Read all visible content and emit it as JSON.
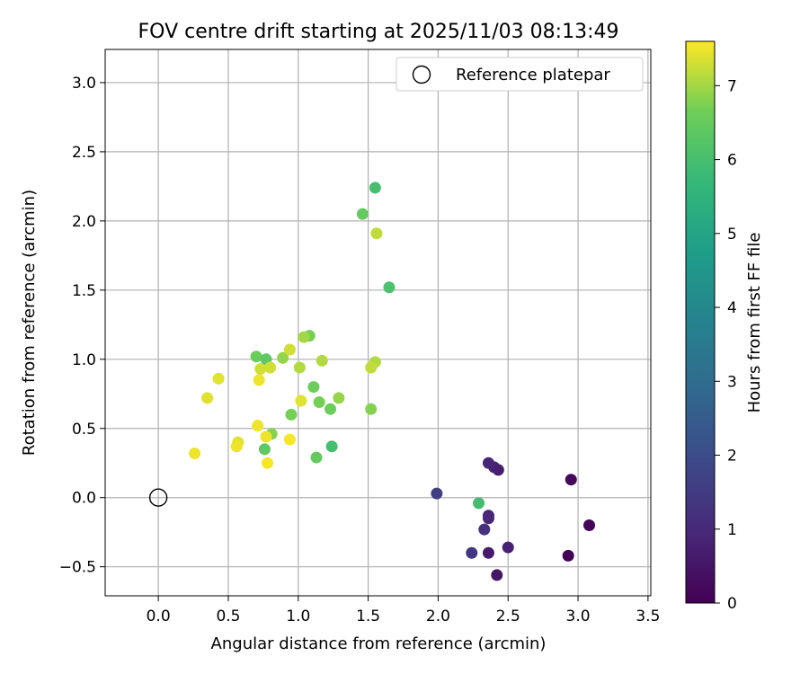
{
  "chart_data": {
    "type": "scatter",
    "title": "FOV centre drift starting at 2025/11/03 08:13:49",
    "xlabel": "Angular distance from reference (arcmin)",
    "ylabel": "Rotation from reference (arcmin)",
    "xlim": [
      -0.38,
      3.52
    ],
    "ylim": [
      -0.71,
      3.24
    ],
    "xticks": [
      0.0,
      0.5,
      1.0,
      1.5,
      2.0,
      2.5,
      3.0,
      3.5
    ],
    "xtick_labels": [
      "0.0",
      "0.5",
      "1.0",
      "1.5",
      "2.0",
      "2.5",
      "3.0",
      "3.5"
    ],
    "yticks": [
      -0.5,
      0.0,
      0.5,
      1.0,
      1.5,
      2.0,
      2.5,
      3.0
    ],
    "ytick_labels": [
      "−0.5",
      "0.0",
      "0.5",
      "1.0",
      "1.5",
      "2.0",
      "2.5",
      "3.0"
    ],
    "grid": true,
    "legend": {
      "label": "Reference platepar",
      "position": "top-right"
    },
    "reference_point": {
      "x": 0.0,
      "y": 0.0
    },
    "colorbar": {
      "label": "Hours from first FF file",
      "colormap": "viridis",
      "range": [
        0,
        7.6
      ],
      "ticks": [
        0,
        1,
        2,
        3,
        4,
        5,
        6,
        7
      ],
      "tick_labels": [
        "0",
        "1",
        "2",
        "3",
        "4",
        "5",
        "6",
        "7"
      ]
    },
    "points": [
      {
        "x": 2.93,
        "y": -0.42,
        "h": 0.05
      },
      {
        "x": 3.08,
        "y": -0.2,
        "h": 0.1
      },
      {
        "x": 2.95,
        "y": 0.13,
        "h": 0.2
      },
      {
        "x": 2.42,
        "y": -0.56,
        "h": 0.5
      },
      {
        "x": 2.36,
        "y": -0.4,
        "h": 0.6
      },
      {
        "x": 2.5,
        "y": -0.36,
        "h": 0.8
      },
      {
        "x": 2.43,
        "y": 0.2,
        "h": 0.7
      },
      {
        "x": 2.4,
        "y": 0.22,
        "h": 0.8
      },
      {
        "x": 2.36,
        "y": 0.25,
        "h": 0.9
      },
      {
        "x": 2.36,
        "y": -0.13,
        "h": 0.9
      },
      {
        "x": 2.36,
        "y": -0.15,
        "h": 0.95
      },
      {
        "x": 2.33,
        "y": -0.23,
        "h": 1.2
      },
      {
        "x": 2.24,
        "y": -0.4,
        "h": 1.4
      },
      {
        "x": 1.99,
        "y": 0.03,
        "h": 1.6
      },
      {
        "x": 2.29,
        "y": -0.04,
        "h": 5.95
      },
      {
        "x": 1.55,
        "y": 2.24,
        "h": 6.0
      },
      {
        "x": 1.65,
        "y": 1.52,
        "h": 6.1
      },
      {
        "x": 1.24,
        "y": 0.37,
        "h": 6.0
      },
      {
        "x": 1.46,
        "y": 2.05,
        "h": 6.5
      },
      {
        "x": 0.7,
        "y": 1.02,
        "h": 6.6
      },
      {
        "x": 0.77,
        "y": 1.0,
        "h": 6.4
      },
      {
        "x": 0.76,
        "y": 0.35,
        "h": 6.4
      },
      {
        "x": 1.13,
        "y": 0.29,
        "h": 6.5
      },
      {
        "x": 1.11,
        "y": 0.8,
        "h": 6.6
      },
      {
        "x": 1.23,
        "y": 0.64,
        "h": 6.6
      },
      {
        "x": 1.15,
        "y": 0.69,
        "h": 6.7
      },
      {
        "x": 1.52,
        "y": 0.64,
        "h": 6.8
      },
      {
        "x": 1.08,
        "y": 1.17,
        "h": 6.7
      },
      {
        "x": 0.95,
        "y": 0.6,
        "h": 6.7
      },
      {
        "x": 1.29,
        "y": 0.72,
        "h": 6.9
      },
      {
        "x": 0.81,
        "y": 0.46,
        "h": 6.8
      },
      {
        "x": 0.89,
        "y": 1.01,
        "h": 6.9
      },
      {
        "x": 1.04,
        "y": 1.16,
        "h": 7.0
      },
      {
        "x": 1.01,
        "y": 0.94,
        "h": 7.1
      },
      {
        "x": 1.17,
        "y": 0.99,
        "h": 7.1
      },
      {
        "x": 1.55,
        "y": 0.98,
        "h": 7.1
      },
      {
        "x": 1.52,
        "y": 0.94,
        "h": 7.2
      },
      {
        "x": 1.56,
        "y": 1.91,
        "h": 7.2
      },
      {
        "x": 0.8,
        "y": 0.94,
        "h": 7.3
      },
      {
        "x": 0.73,
        "y": 0.93,
        "h": 7.3
      },
      {
        "x": 0.94,
        "y": 1.07,
        "h": 7.3
      },
      {
        "x": 1.02,
        "y": 0.7,
        "h": 7.4
      },
      {
        "x": 0.57,
        "y": 0.4,
        "h": 7.4
      },
      {
        "x": 0.56,
        "y": 0.37,
        "h": 7.5
      },
      {
        "x": 0.43,
        "y": 0.86,
        "h": 7.4
      },
      {
        "x": 0.35,
        "y": 0.72,
        "h": 7.4
      },
      {
        "x": 0.26,
        "y": 0.32,
        "h": 7.5
      },
      {
        "x": 0.72,
        "y": 0.85,
        "h": 7.5
      },
      {
        "x": 0.71,
        "y": 0.52,
        "h": 7.5
      },
      {
        "x": 0.77,
        "y": 0.44,
        "h": 7.5
      },
      {
        "x": 0.94,
        "y": 0.42,
        "h": 7.55
      },
      {
        "x": 0.78,
        "y": 0.25,
        "h": 7.55
      }
    ]
  }
}
